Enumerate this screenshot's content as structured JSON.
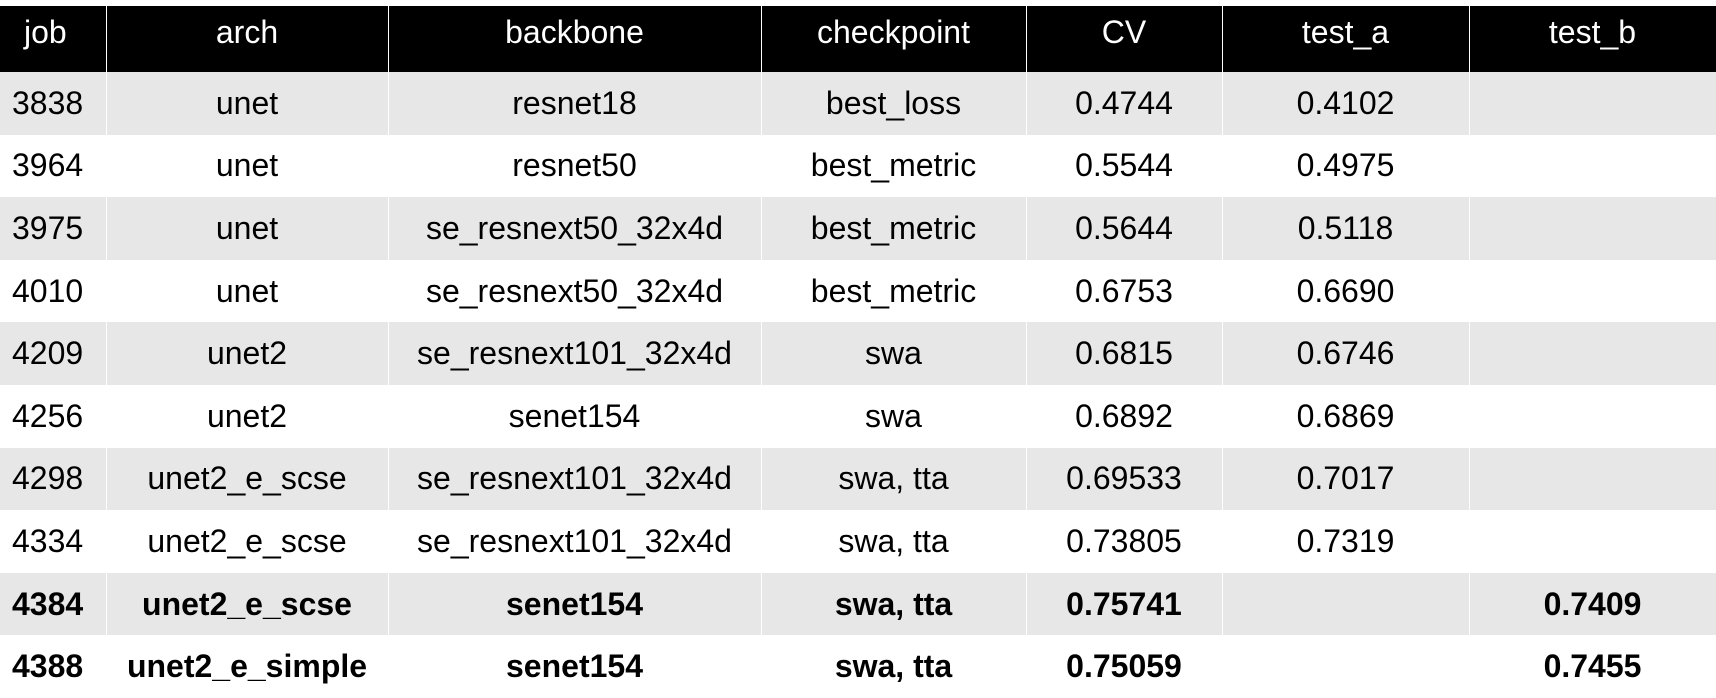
{
  "table": {
    "columns": [
      "job",
      "arch",
      "backbone",
      "checkpoint",
      "CV",
      "test_a",
      "test_b"
    ],
    "rows": [
      [
        "3838",
        "unet",
        "resnet18",
        "best_loss",
        "0.4744",
        "0.4102",
        null
      ],
      [
        "3964",
        "unet",
        "resnet50",
        "best_metric",
        "0.5544",
        "0.4975",
        null
      ],
      [
        "3975",
        "unet",
        "se_resnext50_32x4d",
        "best_metric",
        "0.5644",
        "0.5118",
        null
      ],
      [
        "4010",
        "unet",
        "se_resnext50_32x4d",
        "best_metric",
        "0.6753",
        "0.6690",
        null
      ],
      [
        "4209",
        "unet2",
        "se_resnext101_32x4d",
        "swa",
        "0.6815",
        "0.6746",
        null
      ],
      [
        "4256",
        "unet2",
        "senet154",
        "swa",
        "0.6892",
        "0.6869",
        null
      ],
      [
        "4298",
        "unet2_e_scse",
        "se_resnext101_32x4d",
        "swa, tta",
        "0.69533",
        "0.7017",
        null
      ],
      [
        "4334",
        "unet2_e_scse",
        "se_resnext101_32x4d",
        "swa, tta",
        "0.73805",
        "0.7319",
        null
      ],
      [
        "4384",
        "unet2_e_scse",
        "senet154",
        "swa, tta",
        "0.75741",
        null,
        "0.7409"
      ],
      [
        "4388",
        "unet2_e_simple",
        "senet154",
        "swa, tta",
        "0.75059",
        null,
        "0.7455"
      ]
    ],
    "bold_rows": [
      8,
      9
    ]
  }
}
